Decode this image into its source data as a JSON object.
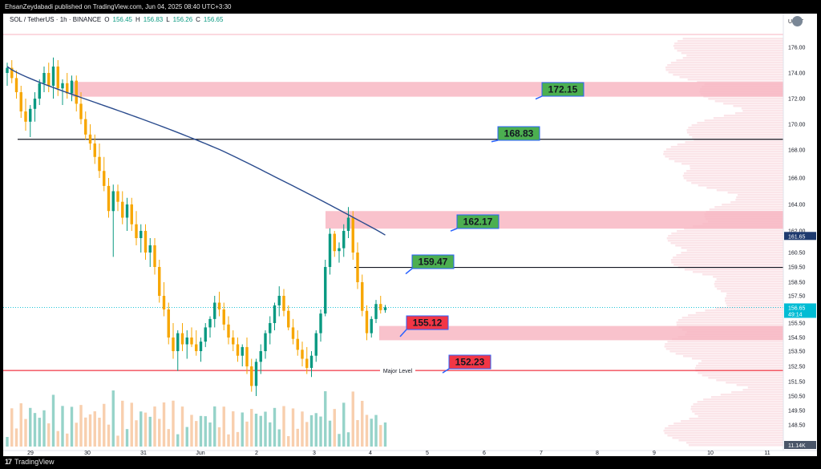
{
  "header": {
    "published": "EhsanZeydabadi published on TradingView.com, Jun 04, 2025 08:40 UTC+3:30",
    "symbol": "SOL / TetherUS · 1h · BINANCE",
    "o_label": "O",
    "o": "156.45",
    "h_label": "H",
    "h": "156.83",
    "l_label": "L",
    "l": "156.26",
    "c_label": "C",
    "c": "156.65"
  },
  "footer": {
    "logo_text": "TradingView",
    "logo_mark": "17"
  },
  "colors": {
    "up": "#089981",
    "down": "#f7a600",
    "sma": "#2a4b8d",
    "zone": "#f7b3bf",
    "callout_green": "#4caf50",
    "callout_red": "#f23645",
    "callout_border": "#2962ff",
    "major": "#f23645",
    "last_price": "#00bcd4"
  },
  "chart_data": {
    "type": "candlestick",
    "title": "SOL / TetherUS · 1h · BINANCE",
    "currency": "USDT",
    "y_ticks": [
      148.5,
      149.5,
      150.5,
      151.5,
      152.5,
      153.5,
      154.5,
      155.5,
      156.5,
      157.5,
      158.5,
      159.5,
      160.5,
      162.0,
      164.0,
      166.0,
      168.0,
      170.0,
      172.0,
      174.0,
      176.0
    ],
    "y_tick_labels": [
      "148.50",
      "149.50",
      "150.50",
      "151.50",
      "152.50",
      "153.50",
      "154.50",
      "155.50",
      "156.50",
      "157.50",
      "158.50",
      "159.50",
      "160.50",
      "162.00",
      "164.00",
      "166.00",
      "168.00",
      "170.00",
      "172.00",
      "174.00",
      "176.00"
    ],
    "x_ticks": [
      "29",
      "30",
      "31",
      "Jun",
      "2",
      "3",
      "4",
      "5",
      "6",
      "7",
      "8",
      "9",
      "10",
      "11"
    ],
    "horizontal_levels": [
      {
        "value": 168.83,
        "label": "168.83",
        "color": "black"
      },
      {
        "value": 159.47,
        "label": "159.47",
        "color": "black"
      },
      {
        "value": 152.23,
        "label": "152.23",
        "color": "red",
        "text": "Major Level"
      }
    ],
    "zones": [
      {
        "top": 173.3,
        "bottom": 172.15,
        "label": "172.15",
        "callout": "green"
      },
      {
        "top": 163.5,
        "bottom": 162.17,
        "label": "162.17",
        "callout": "green"
      },
      {
        "top": 155.3,
        "bottom": 154.3,
        "label": "155.12",
        "callout": "red"
      }
    ],
    "last_price": {
      "value": "156.65",
      "countdown": "49:14"
    },
    "sma_label_price": "161.65",
    "volume_label": "11.14K",
    "candles": [
      [
        174.0,
        174.8,
        173.0,
        174.4
      ],
      [
        174.4,
        175.0,
        173.2,
        173.6
      ],
      [
        173.6,
        174.2,
        172.0,
        172.5
      ],
      [
        172.5,
        173.0,
        170.5,
        171.0
      ],
      [
        171.0,
        172.0,
        169.5,
        170.2
      ],
      [
        170.2,
        171.5,
        169.0,
        171.2
      ],
      [
        171.2,
        172.5,
        170.2,
        172.0
      ],
      [
        172.0,
        173.5,
        171.5,
        173.2
      ],
      [
        173.2,
        174.5,
        172.5,
        174.0
      ],
      [
        174.0,
        174.8,
        172.5,
        173.0
      ],
      [
        173.0,
        175.2,
        172.0,
        174.5
      ],
      [
        174.5,
        175.0,
        172.2,
        172.8
      ],
      [
        172.8,
        173.5,
        171.5,
        173.2
      ],
      [
        173.2,
        174.0,
        172.0,
        172.4
      ],
      [
        172.4,
        173.8,
        171.8,
        173.4
      ],
      [
        173.4,
        173.8,
        171.0,
        171.6
      ],
      [
        171.6,
        172.5,
        170.0,
        170.4
      ],
      [
        170.4,
        171.0,
        168.8,
        169.2
      ],
      [
        169.2,
        170.0,
        168.0,
        168.5
      ],
      [
        168.5,
        169.2,
        167.0,
        167.5
      ],
      [
        167.5,
        168.5,
        166.0,
        166.5
      ],
      [
        166.5,
        167.5,
        165.0,
        165.4
      ],
      [
        165.4,
        166.0,
        163.0,
        163.5
      ],
      [
        163.5,
        165.5,
        160.2,
        165.0
      ],
      [
        165.0,
        165.5,
        163.5,
        164.2
      ],
      [
        164.2,
        165.0,
        162.5,
        163.0
      ],
      [
        163.0,
        164.5,
        162.0,
        164.0
      ],
      [
        164.0,
        164.5,
        162.0,
        162.5
      ],
      [
        162.5,
        163.5,
        161.0,
        161.5
      ],
      [
        161.5,
        162.5,
        160.5,
        162.0
      ],
      [
        162.0,
        162.5,
        160.0,
        160.5
      ],
      [
        160.5,
        161.5,
        159.5,
        161.0
      ],
      [
        161.0,
        161.5,
        159.0,
        159.5
      ],
      [
        159.5,
        160.0,
        157.0,
        157.5
      ],
      [
        157.5,
        158.5,
        156.0,
        156.5
      ],
      [
        156.5,
        157.0,
        154.0,
        154.5
      ],
      [
        154.5,
        155.5,
        153.0,
        153.5
      ],
      [
        153.5,
        155.0,
        152.2,
        154.8
      ],
      [
        154.8,
        155.5,
        153.5,
        154.0
      ],
      [
        154.0,
        155.0,
        153.0,
        154.5
      ],
      [
        154.5,
        155.2,
        153.8,
        154.0
      ],
      [
        154.0,
        155.0,
        153.2,
        153.5
      ],
      [
        153.5,
        154.5,
        152.8,
        154.2
      ],
      [
        154.2,
        155.5,
        153.8,
        155.2
      ],
      [
        155.2,
        156.0,
        154.5,
        155.8
      ],
      [
        155.8,
        157.5,
        155.2,
        157.0
      ],
      [
        157.0,
        157.8,
        156.0,
        156.5
      ],
      [
        156.5,
        157.0,
        155.0,
        155.4
      ],
      [
        155.4,
        156.0,
        154.0,
        154.5
      ],
      [
        154.5,
        155.0,
        153.5,
        154.0
      ],
      [
        154.0,
        154.5,
        152.8,
        153.2
      ],
      [
        153.2,
        154.0,
        152.5,
        153.8
      ],
      [
        153.8,
        154.5,
        152.0,
        152.5
      ],
      [
        152.5,
        153.0,
        150.8,
        151.2
      ],
      [
        151.2,
        153.0,
        150.5,
        152.8
      ],
      [
        152.8,
        154.0,
        152.0,
        153.5
      ],
      [
        153.5,
        155.0,
        153.0,
        154.8
      ],
      [
        154.8,
        156.0,
        154.0,
        155.5
      ],
      [
        155.5,
        157.0,
        155.0,
        156.8
      ],
      [
        156.8,
        158.2,
        156.0,
        157.5
      ],
      [
        157.5,
        158.0,
        156.0,
        156.4
      ],
      [
        156.4,
        156.8,
        155.0,
        155.2
      ],
      [
        155.2,
        155.8,
        154.0,
        154.4
      ],
      [
        154.4,
        155.0,
        153.2,
        153.6
      ],
      [
        153.6,
        154.2,
        152.5,
        153.0
      ],
      [
        153.0,
        153.8,
        152.0,
        152.4
      ],
      [
        152.4,
        153.5,
        151.8,
        153.2
      ],
      [
        153.2,
        155.0,
        152.8,
        154.8
      ],
      [
        154.8,
        156.5,
        154.2,
        156.2
      ],
      [
        156.2,
        160.0,
        156.0,
        159.5
      ],
      [
        159.5,
        162.2,
        159.0,
        161.8
      ],
      [
        161.8,
        162.0,
        160.2,
        160.6
      ],
      [
        160.6,
        161.2,
        159.8,
        160.8
      ],
      [
        160.8,
        162.5,
        160.2,
        162.0
      ],
      [
        162.0,
        163.8,
        161.5,
        163.0
      ],
      [
        163.0,
        163.5,
        160.0,
        160.5
      ],
      [
        160.5,
        161.2,
        158.0,
        158.5
      ],
      [
        158.5,
        159.0,
        156.0,
        156.4
      ],
      [
        156.4,
        156.8,
        154.3,
        154.8
      ],
      [
        154.8,
        156.0,
        154.5,
        155.8
      ],
      [
        155.8,
        157.2,
        155.5,
        156.9
      ],
      [
        156.9,
        157.5,
        156.2,
        156.45
      ],
      [
        156.45,
        156.83,
        156.26,
        156.65
      ]
    ]
  }
}
